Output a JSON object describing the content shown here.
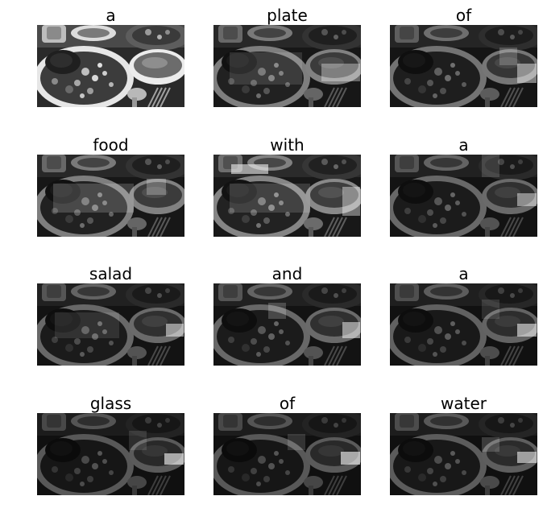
{
  "panels": [
    {
      "word": "a"
    },
    {
      "word": "plate"
    },
    {
      "word": "of"
    },
    {
      "word": "food"
    },
    {
      "word": "with"
    },
    {
      "word": "a"
    },
    {
      "word": "salad"
    },
    {
      "word": "and"
    },
    {
      "word": "a"
    },
    {
      "word": "glass"
    },
    {
      "word": "of"
    },
    {
      "word": "water"
    }
  ]
}
